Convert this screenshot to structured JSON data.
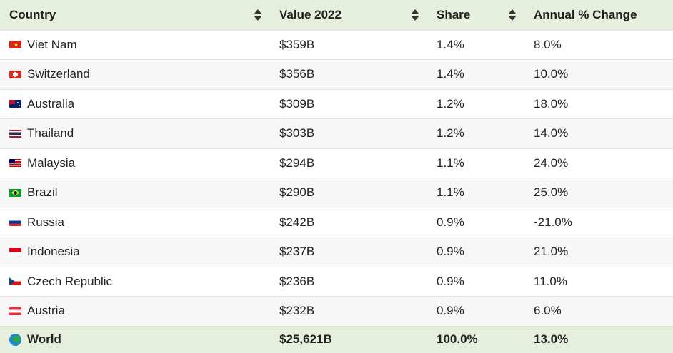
{
  "table": {
    "headers": [
      "Country",
      "Value 2022",
      "Share",
      "Annual % Change"
    ],
    "rows": [
      {
        "country": "Viet Nam",
        "flag_icon": "vietnam-flag-icon",
        "value": "$359B",
        "share": "1.4%",
        "change": "8.0%"
      },
      {
        "country": "Switzerland",
        "flag_icon": "switzerland-flag-icon",
        "value": "$356B",
        "share": "1.4%",
        "change": "10.0%"
      },
      {
        "country": "Australia",
        "flag_icon": "australia-flag-icon",
        "value": "$309B",
        "share": "1.2%",
        "change": "18.0%"
      },
      {
        "country": "Thailand",
        "flag_icon": "thailand-flag-icon",
        "value": "$303B",
        "share": "1.2%",
        "change": "14.0%"
      },
      {
        "country": "Malaysia",
        "flag_icon": "malaysia-flag-icon",
        "value": "$294B",
        "share": "1.1%",
        "change": "24.0%"
      },
      {
        "country": "Brazil",
        "flag_icon": "brazil-flag-icon",
        "value": "$290B",
        "share": "1.1%",
        "change": "25.0%"
      },
      {
        "country": "Russia",
        "flag_icon": "russia-flag-icon",
        "value": "$242B",
        "share": "0.9%",
        "change": "-21.0%"
      },
      {
        "country": "Indonesia",
        "flag_icon": "indonesia-flag-icon",
        "value": "$237B",
        "share": "0.9%",
        "change": "21.0%"
      },
      {
        "country": "Czech Republic",
        "flag_icon": "czech-flag-icon",
        "value": "$236B",
        "share": "0.9%",
        "change": "11.0%"
      },
      {
        "country": "Austria",
        "flag_icon": "austria-flag-icon",
        "value": "$232B",
        "share": "0.9%",
        "change": "6.0%"
      }
    ],
    "total": {
      "country": "World",
      "icon": "globe-icon",
      "value": "$25,621B",
      "share": "100.0%",
      "change": "13.0%"
    }
  },
  "colors": {
    "header_bg": "#e6efdd",
    "zebra_bg": "#f7f7f7",
    "border": "#e3e3e3"
  }
}
